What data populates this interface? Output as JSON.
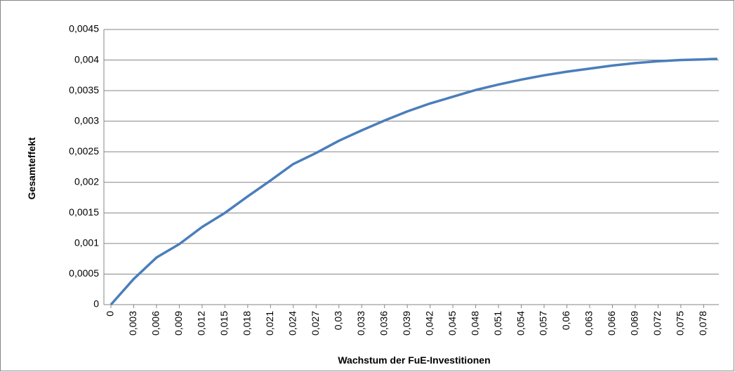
{
  "chart_data": {
    "type": "line",
    "xlabel": "Wachstum der FuE-Investitionen",
    "ylabel": "Gesamteffekt",
    "x": [
      0,
      0.003,
      0.006,
      0.009,
      0.012,
      0.015,
      0.018,
      0.021,
      0.024,
      0.027,
      0.03,
      0.033,
      0.036,
      0.039,
      0.042,
      0.045,
      0.048,
      0.051,
      0.054,
      0.057,
      0.06,
      0.063,
      0.066,
      0.069,
      0.072,
      0.075,
      0.078,
      0.0798
    ],
    "series": [
      {
        "name": "Gesamteffekt",
        "color": "#4a7ebb",
        "values": [
          0,
          0.00042,
          0.00077,
          0.00099,
          0.00127,
          0.0015,
          0.00177,
          0.00203,
          0.0023,
          0.00248,
          0.00268,
          0.00285,
          0.00301,
          0.00316,
          0.00329,
          0.0034,
          0.00351,
          0.0036,
          0.00368,
          0.00375,
          0.00381,
          0.00386,
          0.00391,
          0.00395,
          0.00398,
          0.004,
          0.00401,
          0.00402
        ]
      }
    ],
    "xlim": [
      0,
      0.08
    ],
    "xticks": [
      0,
      {
        "value": 0.003,
        "label": "0,003"
      },
      {
        "value": 0.006,
        "label": "0,006"
      },
      {
        "value": 0.009,
        "label": "0,009"
      },
      {
        "value": 0.012,
        "label": "0,012"
      },
      {
        "value": 0.015,
        "label": "0,015"
      },
      {
        "value": 0.018,
        "label": "0,018"
      },
      {
        "value": 0.021,
        "label": "0,021"
      },
      {
        "value": 0.024,
        "label": "0,024"
      },
      {
        "value": 0.027,
        "label": "0,027"
      },
      {
        "value": 0.03,
        "label": "0,03"
      },
      {
        "value": 0.033,
        "label": "0,033"
      },
      {
        "value": 0.036,
        "label": "0,036"
      },
      {
        "value": 0.039,
        "label": "0,039"
      },
      {
        "value": 0.042,
        "label": "0,042"
      },
      {
        "value": 0.045,
        "label": "0,045"
      },
      {
        "value": 0.048,
        "label": "0,048"
      },
      {
        "value": 0.051,
        "label": "0,051"
      },
      {
        "value": 0.054,
        "label": "0,054"
      },
      {
        "value": 0.057,
        "label": "0,057"
      },
      {
        "value": 0.06,
        "label": "0,06"
      },
      {
        "value": 0.063,
        "label": "0,063"
      },
      {
        "value": 0.066,
        "label": "0,066"
      },
      {
        "value": 0.069,
        "label": "0,069"
      },
      {
        "value": 0.072,
        "label": "0,072"
      },
      {
        "value": 0.075,
        "label": "0,075"
      },
      {
        "value": 0.078,
        "label": "0,078"
      }
    ],
    "ylim": [
      0,
      0.0045
    ],
    "yticks": [
      0,
      {
        "value": 0.0005,
        "label": "0,0005"
      },
      {
        "value": 0.001,
        "label": "0,001"
      },
      {
        "value": 0.0015,
        "label": "0,0015"
      },
      {
        "value": 0.002,
        "label": "0,002"
      },
      {
        "value": 0.0025,
        "label": "0,0025"
      },
      {
        "value": 0.003,
        "label": "0,003"
      },
      {
        "value": 0.0035,
        "label": "0,0035"
      },
      {
        "value": 0.004,
        "label": "0,004"
      },
      {
        "value": 0.0045,
        "label": "0,0045"
      }
    ],
    "grid": true
  }
}
